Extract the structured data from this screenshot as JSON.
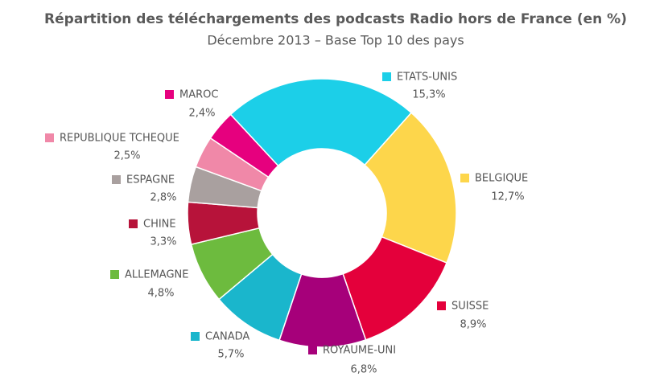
{
  "chart_data": {
    "type": "donut",
    "title": "Répartition des téléchargements des podcasts Radio hors de France (en %)",
    "subtitle": "Décembre 2013 – Base Top 10 des pays",
    "categories": [
      "ETATS-UNIS",
      "BELGIQUE",
      "SUISSE",
      "ROYAUME-UNI",
      "CANADA",
      "ALLEMAGNE",
      "CHINE",
      "ESPAGNE",
      "REPUBLIQUE TCHEQUE",
      "MAROC"
    ],
    "values": [
      15.3,
      12.7,
      8.9,
      6.8,
      5.7,
      4.8,
      3.3,
      2.8,
      2.5,
      2.4
    ],
    "value_labels": [
      "15,3%",
      "12,7%",
      "8,9%",
      "6,8%",
      "5,7%",
      "4,8%",
      "3,3%",
      "2,8%",
      "2,5%",
      "2,4%"
    ],
    "colors": [
      "#1ccfe8",
      "#fdd64b",
      "#e4003b",
      "#a6007a",
      "#1ab6cc",
      "#6dbb3e",
      "#b7133a",
      "#a9a09f",
      "#f088a8",
      "#e6007e"
    ]
  }
}
